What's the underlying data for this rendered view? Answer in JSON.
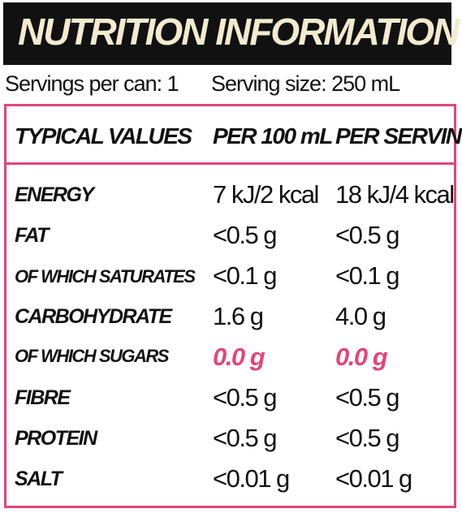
{
  "header": {
    "title": "NUTRITION INFORMATION"
  },
  "servings": {
    "per_can": "Servings per can: 1",
    "size": "Serving size: 250 mL"
  },
  "table": {
    "columns": [
      "TYPICAL VALUES",
      "PER 100 mL",
      "PER SERVING"
    ],
    "rows": [
      [
        "ENERGY",
        "7 kJ/2 kcal",
        "18 kJ/4 kcal"
      ],
      [
        "FAT",
        "<0.5 g",
        "<0.5 g"
      ],
      [
        "OF WHICH SATURATES",
        "<0.1 g",
        "<0.1 g"
      ],
      [
        "CARBOHYDRATE",
        "1.6 g",
        "4.0 g"
      ],
      [
        "OF WHICH SUGARS",
        "0.0 g",
        "0.0 g"
      ],
      [
        "FIBRE",
        "<0.5 g",
        "<0.5 g"
      ],
      [
        "PROTEIN",
        "<0.5 g",
        "<0.5 g"
      ],
      [
        "SALT",
        "<0.01 g",
        "<0.01 g"
      ]
    ],
    "highlighted_rows": [
      4
    ],
    "highlight_color": "#e2457c"
  }
}
